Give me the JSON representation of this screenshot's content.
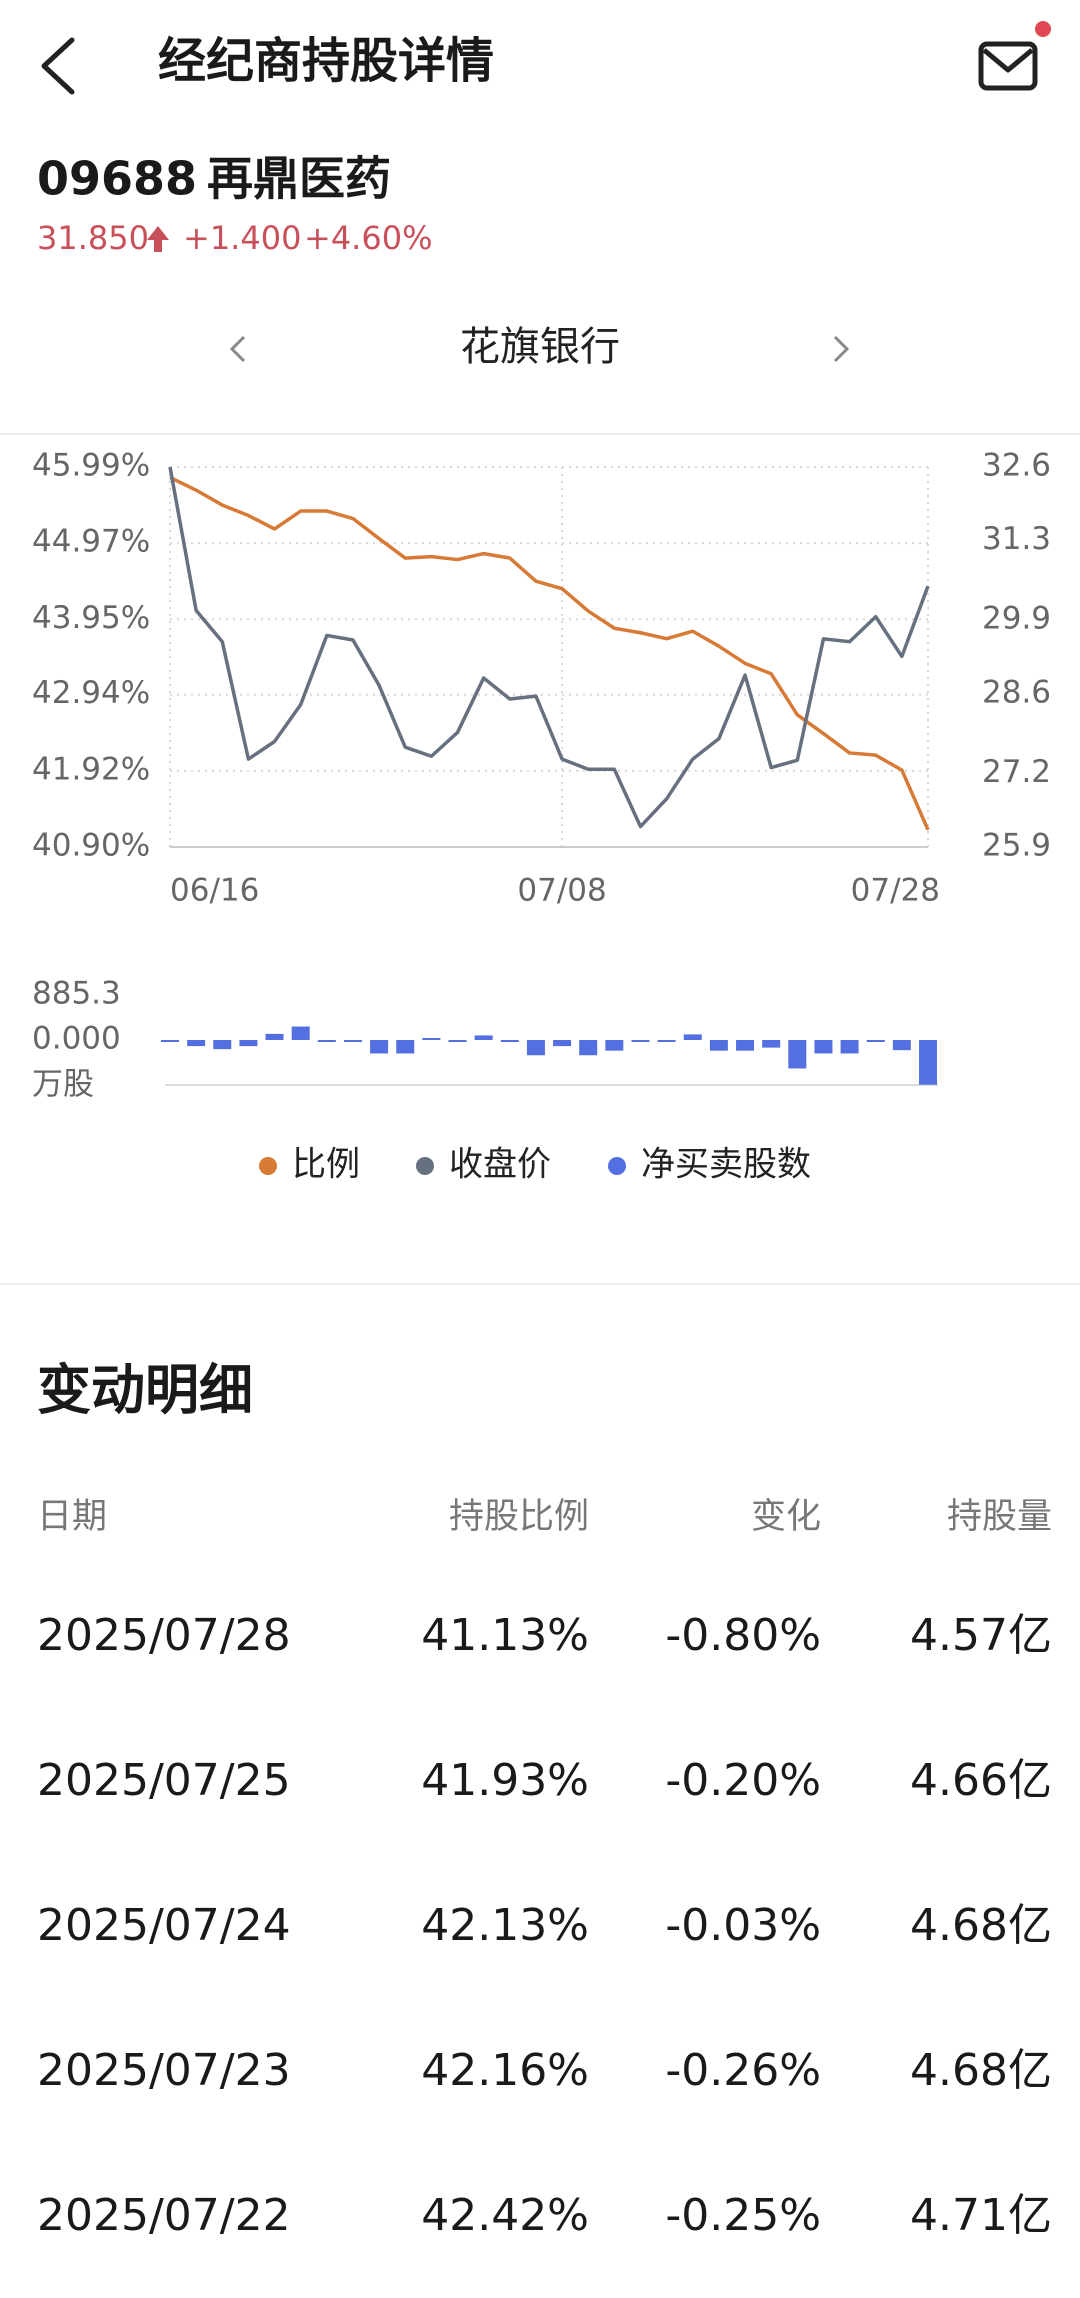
{
  "header": {
    "title": "经纪商持股详情"
  },
  "stock": {
    "code": "09688",
    "name": "再鼎医药",
    "price": "31.850",
    "change": "+1.400",
    "change_pct": "+4.60%"
  },
  "broker": {
    "name": "花旗银行"
  },
  "chart_data": [
    {
      "type": "line",
      "categories": [
        "06/16",
        null,
        null,
        null,
        null,
        null,
        null,
        null,
        null,
        null,
        null,
        null,
        null,
        null,
        null,
        "07/08",
        null,
        null,
        null,
        null,
        null,
        null,
        null,
        null,
        null,
        null,
        null,
        null,
        null,
        "07/28"
      ],
      "series": [
        {
          "name": "比例",
          "color": "#d67a36",
          "values": [
            45.85,
            45.68,
            45.48,
            45.34,
            45.16,
            45.4,
            45.4,
            45.3,
            45.03,
            44.77,
            44.79,
            44.75,
            44.83,
            44.77,
            44.46,
            44.36,
            44.06,
            43.83,
            43.77,
            43.69,
            43.79,
            43.59,
            43.36,
            43.22,
            42.67,
            42.42,
            42.16,
            42.13,
            41.93,
            41.13
          ]
        },
        {
          "name": "收盘价",
          "color": "#66707e",
          "axis": "y2",
          "values": [
            32.6,
            30.07,
            29.52,
            27.45,
            27.76,
            28.41,
            29.63,
            29.55,
            28.75,
            27.66,
            27.5,
            27.92,
            28.88,
            28.51,
            28.56,
            27.45,
            27.27,
            27.27,
            26.26,
            26.75,
            27.45,
            27.81,
            28.93,
            27.3,
            27.43,
            29.57,
            29.52,
            29.96,
            29.26,
            30.5
          ]
        }
      ],
      "ylim": [
        40.9,
        45.99
      ],
      "yticks": [
        {
          "value": 45.99,
          "label": "45.99%"
        },
        {
          "value": 44.97,
          "label": "44.97%"
        },
        {
          "value": 43.95,
          "label": "43.95%"
        },
        {
          "value": 42.94,
          "label": "42.94%"
        },
        {
          "value": 41.92,
          "label": "41.92%"
        },
        {
          "value": 40.9,
          "label": "40.90%"
        }
      ],
      "y2lim": [
        25.9,
        32.6
      ],
      "y2ticks": [
        32.6,
        31.3,
        29.9,
        28.6,
        27.2,
        25.9
      ],
      "grid": true
    },
    {
      "type": "bar",
      "series": [
        {
          "name": "净买卖股数",
          "color": "#5470e0",
          "values": [
            -10,
            -120,
            -180,
            -120,
            120,
            265,
            -20,
            -30,
            -265,
            -265,
            20,
            -20,
            90,
            -40,
            -300,
            -120,
            -300,
            -210,
            -20,
            -30,
            110,
            -210,
            -210,
            -150,
            -560,
            -265,
            -265,
            -30,
            -200,
            -880
          ]
        }
      ],
      "ylim": [
        -885.3,
        885.3
      ],
      "yticks": [
        885.3,
        {
          "value": 0,
          "label": "0.000"
        }
      ],
      "unit": "万股"
    }
  ],
  "table": {
    "title": "变动明细",
    "columns": [
      "日期",
      "持股比例",
      "变化",
      "持股量"
    ],
    "rows": [
      [
        "2025/07/28",
        "41.13%",
        "-0.80%",
        "4.57亿"
      ],
      [
        "2025/07/25",
        "41.93%",
        "-0.20%",
        "4.66亿"
      ],
      [
        "2025/07/24",
        "42.13%",
        "-0.03%",
        "4.68亿"
      ],
      [
        "2025/07/23",
        "42.16%",
        "-0.26%",
        "4.68亿"
      ],
      [
        "2025/07/22",
        "42.42%",
        "-0.25%",
        "4.71亿"
      ]
    ]
  }
}
